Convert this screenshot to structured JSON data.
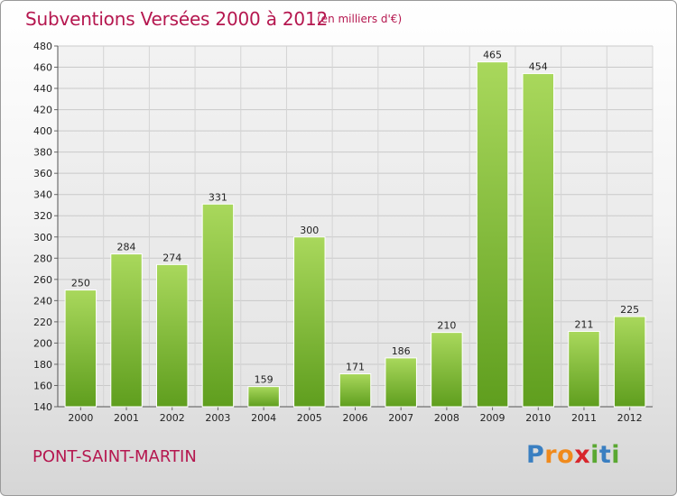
{
  "header": {
    "title": "Subventions Versées 2000 à 2012",
    "unit": "(en milliers d'€)"
  },
  "footer": {
    "commune": "PONT-SAINT-MARTIN",
    "logo_letters": [
      {
        "ch": "P",
        "color": "#3a7fc1"
      },
      {
        "ch": "r",
        "color": "#f08a1c"
      },
      {
        "ch": "o",
        "color": "#f08a1c"
      },
      {
        "ch": "x",
        "color": "#d8262c"
      },
      {
        "ch": "i",
        "color": "#5aa832"
      },
      {
        "ch": "t",
        "color": "#3a7fc1"
      },
      {
        "ch": "i",
        "color": "#5aa832"
      }
    ]
  },
  "chart_data": {
    "type": "bar",
    "title": "Subventions Versées 2000 à 2012",
    "subtitle": "(en milliers d'€)",
    "xlabel": "",
    "ylabel": "",
    "categories": [
      "2000",
      "2001",
      "2002",
      "2003",
      "2004",
      "2005",
      "2006",
      "2007",
      "2008",
      "2009",
      "2010",
      "2011",
      "2012"
    ],
    "values": [
      250,
      284,
      274,
      331,
      159,
      300,
      171,
      186,
      210,
      465,
      454,
      211,
      225
    ],
    "ylim": [
      140,
      480
    ],
    "ytick_step": 20,
    "grid": true,
    "bar_color": "#7dbb2e",
    "bar_color_light": "#a6d65a"
  }
}
